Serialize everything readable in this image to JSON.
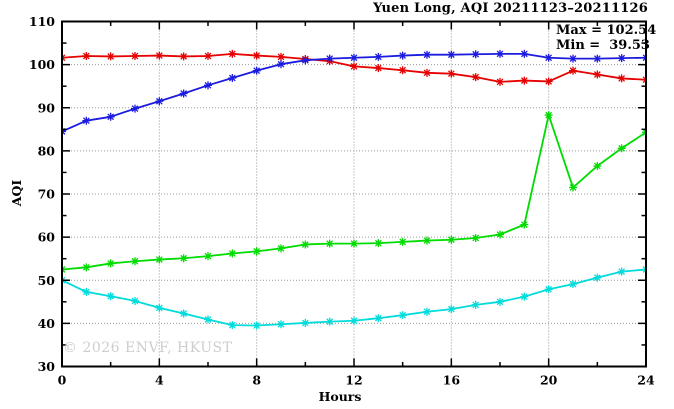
{
  "header": {
    "title": "Yuen Long, AQI 20211123–20211126"
  },
  "stats": {
    "max_label": "Max = 102.54",
    "min_label": "Min =  39.53"
  },
  "watermark": "© 2026 ENVF, HKUST",
  "colors": {
    "frame": "#000000",
    "grid": "#999999",
    "watermark": "#cdcdcd"
  },
  "chart_data": {
    "type": "line",
    "title": "Yuen Long, AQI 20211123–20211126",
    "xlabel": "Hours",
    "ylabel": "AQI",
    "xlim": [
      0,
      24
    ],
    "ylim": [
      30,
      110
    ],
    "x_major_ticks": [
      0,
      4,
      8,
      12,
      16,
      20,
      24
    ],
    "x_minor_ticks": [
      2,
      6,
      10,
      14,
      18,
      22
    ],
    "y_major_ticks": [
      30,
      40,
      50,
      60,
      70,
      80,
      90,
      100,
      110
    ],
    "y_minor_ticks": [
      35,
      45,
      55,
      65,
      75,
      85,
      95,
      105
    ],
    "grid": true,
    "legend_position": "none",
    "max": 102.54,
    "min": 39.53,
    "x": [
      0,
      1,
      2,
      3,
      4,
      5,
      6,
      7,
      8,
      9,
      10,
      11,
      12,
      13,
      14,
      15,
      16,
      17,
      18,
      19,
      20,
      21,
      22,
      23,
      24
    ],
    "series": [
      {
        "name": "red",
        "color": "#e60000",
        "values": [
          101.6,
          102.0,
          101.9,
          102.0,
          102.1,
          101.9,
          102.0,
          102.5,
          102.1,
          101.8,
          101.3,
          100.8,
          99.6,
          99.2,
          98.7,
          98.1,
          97.9,
          97.1,
          96.0,
          96.3,
          96.1,
          98.6,
          97.7,
          96.8,
          96.5
        ]
      },
      {
        "name": "blue",
        "color": "#1c1ce0",
        "values": [
          84.5,
          87.0,
          87.9,
          89.8,
          91.5,
          93.3,
          95.2,
          96.9,
          98.6,
          100.1,
          101.0,
          101.4,
          101.6,
          101.8,
          102.1,
          102.3,
          102.3,
          102.4,
          102.5,
          102.5,
          101.6,
          101.4,
          101.4,
          101.5,
          101.6
        ]
      },
      {
        "name": "green",
        "color": "#00dc00",
        "values": [
          52.5,
          53.0,
          53.9,
          54.4,
          54.8,
          55.1,
          55.6,
          56.2,
          56.7,
          57.4,
          58.3,
          58.5,
          58.5,
          58.6,
          58.9,
          59.2,
          59.4,
          59.8,
          60.6,
          62.9,
          88.3,
          71.5,
          76.5,
          80.6,
          84.3
        ]
      },
      {
        "name": "cyan",
        "color": "#00dcdc",
        "values": [
          50.0,
          47.3,
          46.3,
          45.2,
          43.6,
          42.3,
          40.9,
          39.6,
          39.5,
          39.8,
          40.1,
          40.4,
          40.6,
          41.2,
          41.9,
          42.7,
          43.3,
          44.3,
          45.0,
          46.2,
          47.9,
          49.1,
          50.6,
          52.0,
          52.5
        ]
      }
    ]
  }
}
